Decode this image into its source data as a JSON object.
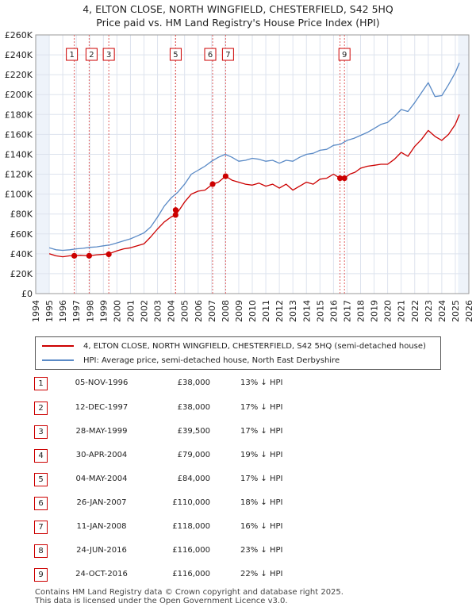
{
  "header": {
    "title_line1": "4, ELTON CLOSE, NORTH WINGFIELD, CHESTERFIELD, S42 5HQ",
    "title_line2": "Price paid vs. HM Land Registry's House Price Index (HPI)"
  },
  "colors": {
    "property": "#cc0000",
    "hpi": "#5a8ac6",
    "grid": "#dde3ee",
    "marker_line": "#e06060",
    "band": "#eef3fa"
  },
  "chart_data": {
    "type": "line",
    "title": "4, ELTON CLOSE, NORTH WINGFIELD, CHESTERFIELD, S42 5HQ — Price paid vs. HM Land Registry's House Price Index (HPI)",
    "xlim": [
      1994,
      2026
    ],
    "ylim": [
      0,
      260000
    ],
    "y_ticks": [
      0,
      20000,
      40000,
      60000,
      80000,
      100000,
      120000,
      140000,
      160000,
      180000,
      200000,
      220000,
      240000,
      260000
    ],
    "y_tick_labels": [
      "£0",
      "£20K",
      "£40K",
      "£60K",
      "£80K",
      "£100K",
      "£120K",
      "£140K",
      "£160K",
      "£180K",
      "£200K",
      "£220K",
      "£240K",
      "£260K"
    ],
    "x_ticks": [
      1994,
      1995,
      1996,
      1997,
      1998,
      1999,
      2000,
      2001,
      2002,
      2003,
      2004,
      2005,
      2006,
      2007,
      2008,
      2009,
      2010,
      2011,
      2012,
      2013,
      2014,
      2015,
      2016,
      2017,
      2018,
      2019,
      2020,
      2021,
      2022,
      2023,
      2024,
      2025,
      2026
    ],
    "x_tick_labels": [
      "1994",
      "1995",
      "1996",
      "1997",
      "1998",
      "1999",
      "2000",
      "2001",
      "2002",
      "2003",
      "2004",
      "2005",
      "2006",
      "2007",
      "2008",
      "2009",
      "2010",
      "2011",
      "2012",
      "2013",
      "2014",
      "2015",
      "2016",
      "2017",
      "2018",
      "2019",
      "2020",
      "2021",
      "2022",
      "2023",
      "2024",
      "2025",
      "2026"
    ],
    "shaded_ranges": [
      [
        1994,
        1995.0
      ],
      [
        2025.2,
        2026
      ]
    ],
    "series": [
      {
        "name": "4, ELTON CLOSE, NORTH WINGFIELD, CHESTERFIELD, S42 5HQ (semi-detached house)",
        "x": [
          1995.0,
          1995.5,
          1996.0,
          1996.5,
          1996.85,
          1997.3,
          1997.95,
          1998.5,
          1999.0,
          1999.4,
          2000.0,
          2000.5,
          2001.0,
          2001.5,
          2002.0,
          2002.5,
          2003.0,
          2003.5,
          2004.0,
          2004.33,
          2004.6,
          2005.0,
          2005.5,
          2006.0,
          2006.5,
          2007.07,
          2007.5,
          2008.03,
          2008.5,
          2009.0,
          2009.5,
          2010.0,
          2010.5,
          2011.0,
          2011.5,
          2012.0,
          2012.5,
          2013.0,
          2013.5,
          2014.0,
          2014.5,
          2015.0,
          2015.5,
          2016.0,
          2016.48,
          2016.81,
          2017.2,
          2017.6,
          2018.0,
          2018.5,
          2019.0,
          2019.5,
          2020.0,
          2020.5,
          2021.0,
          2021.5,
          2022.0,
          2022.5,
          2023.0,
          2023.5,
          2024.0,
          2024.5,
          2025.0,
          2025.3
        ],
        "values": [
          40000,
          38000,
          37000,
          38000,
          38000,
          38500,
          38000,
          39000,
          39500,
          40000,
          43000,
          45000,
          46000,
          48000,
          50000,
          57000,
          65000,
          72000,
          77000,
          79000,
          84000,
          92000,
          100000,
          103000,
          104000,
          110000,
          112000,
          118000,
          114000,
          112000,
          110000,
          109000,
          111000,
          108000,
          110000,
          106000,
          110000,
          104000,
          108000,
          112000,
          110000,
          115000,
          116000,
          120000,
          116000,
          116000,
          120000,
          122000,
          126000,
          128000,
          129000,
          130000,
          130000,
          135000,
          142000,
          138000,
          148000,
          155000,
          164000,
          158000,
          154000,
          160000,
          170000,
          180000
        ]
      },
      {
        "name": "HPI: Average price, semi-detached house, North East Derbyshire",
        "x": [
          1995.0,
          1995.5,
          1996.0,
          1996.5,
          1997.0,
          1997.5,
          1998.0,
          1998.5,
          1999.0,
          1999.5,
          2000.0,
          2000.5,
          2001.0,
          2001.5,
          2002.0,
          2002.5,
          2003.0,
          2003.5,
          2004.0,
          2004.5,
          2005.0,
          2005.5,
          2006.0,
          2006.5,
          2007.0,
          2007.5,
          2008.0,
          2008.5,
          2009.0,
          2009.5,
          2010.0,
          2010.5,
          2011.0,
          2011.5,
          2012.0,
          2012.5,
          2013.0,
          2013.5,
          2014.0,
          2014.5,
          2015.0,
          2015.5,
          2016.0,
          2016.5,
          2017.0,
          2017.5,
          2018.0,
          2018.5,
          2019.0,
          2019.5,
          2020.0,
          2020.5,
          2021.0,
          2021.5,
          2022.0,
          2022.5,
          2023.0,
          2023.5,
          2024.0,
          2024.5,
          2025.0,
          2025.3
        ],
        "values": [
          46000,
          44000,
          43500,
          44000,
          45000,
          45500,
          46500,
          47000,
          48000,
          49000,
          51000,
          53000,
          55000,
          58000,
          61000,
          67000,
          77000,
          88000,
          96000,
          102000,
          110000,
          120000,
          124000,
          128000,
          133000,
          137000,
          140000,
          137000,
          133000,
          134000,
          136000,
          135000,
          133000,
          134000,
          131000,
          134000,
          133000,
          137000,
          140000,
          141000,
          144000,
          145000,
          149000,
          150000,
          154000,
          156000,
          159000,
          162000,
          166000,
          170000,
          172000,
          178000,
          185000,
          183000,
          192000,
          202000,
          212000,
          198000,
          199000,
          210000,
          222000,
          232000
        ]
      }
    ],
    "sale_markers": [
      {
        "label": "1",
        "x": 1996.85,
        "price": 38000
      },
      {
        "label": "2",
        "x": 1997.95,
        "price": 38000
      },
      {
        "label": "3",
        "x": 1999.4,
        "price": 39500
      },
      {
        "label": "4",
        "x": 2004.33,
        "price": 79000
      },
      {
        "label": "5",
        "x": 2004.34,
        "price": 84000
      },
      {
        "label": "6",
        "x": 2007.07,
        "price": 110000
      },
      {
        "label": "7",
        "x": 2008.03,
        "price": 118000
      },
      {
        "label": "8",
        "x": 2016.48,
        "price": 116000
      },
      {
        "label": "9",
        "x": 2016.81,
        "price": 116000
      }
    ],
    "visible_box_labels": [
      "1",
      "2",
      "3",
      "5",
      "6",
      "7",
      "9"
    ]
  },
  "legend": {
    "property_label": "4, ELTON CLOSE, NORTH WINGFIELD, CHESTERFIELD, S42 5HQ (semi-detached house)",
    "hpi_label": "HPI: Average price, semi-detached house, North East Derbyshire"
  },
  "sales": [
    {
      "num": "1",
      "date": "05-NOV-1996",
      "price": "£38,000",
      "hpi": "13% ↓ HPI"
    },
    {
      "num": "2",
      "date": "12-DEC-1997",
      "price": "£38,000",
      "hpi": "17% ↓ HPI"
    },
    {
      "num": "3",
      "date": "28-MAY-1999",
      "price": "£39,500",
      "hpi": "17% ↓ HPI"
    },
    {
      "num": "4",
      "date": "30-APR-2004",
      "price": "£79,000",
      "hpi": "19% ↓ HPI"
    },
    {
      "num": "5",
      "date": "04-MAY-2004",
      "price": "£84,000",
      "hpi": "17% ↓ HPI"
    },
    {
      "num": "6",
      "date": "26-JAN-2007",
      "price": "£110,000",
      "hpi": "18% ↓ HPI"
    },
    {
      "num": "7",
      "date": "11-JAN-2008",
      "price": "£118,000",
      "hpi": "16% ↓ HPI"
    },
    {
      "num": "8",
      "date": "24-JUN-2016",
      "price": "£116,000",
      "hpi": "23% ↓ HPI"
    },
    {
      "num": "9",
      "date": "24-OCT-2016",
      "price": "£116,000",
      "hpi": "22% ↓ HPI"
    }
  ],
  "footer": {
    "line1": "Contains HM Land Registry data © Crown copyright and database right 2025.",
    "line2": "This data is licensed under the Open Government Licence v3.0."
  }
}
